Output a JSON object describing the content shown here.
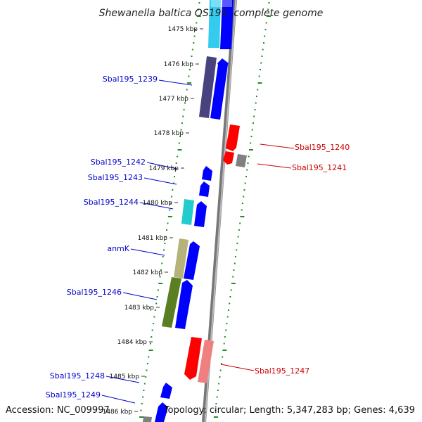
{
  "title": "Shewanella baltica OS195, complete genome",
  "accession_text": "Accession: NC_009997",
  "topology_text": "Topology: circular; Length: 5,347,283 bp; Genes: 4,639",
  "colors": {
    "forward_label": "#0000cc",
    "reverse_label": "#cc0000",
    "backbone": "#8c8c8c",
    "gc_ticks": "#228b22"
  },
  "kbp_labels": [
    {
      "text": "1475 kbp"
    },
    {
      "text": "1476 kbp"
    },
    {
      "text": "1477 kbp"
    },
    {
      "text": "1478 kbp"
    },
    {
      "text": "1479 kbp"
    },
    {
      "text": "1480 kbp"
    },
    {
      "text": "1481 kbp"
    },
    {
      "text": "1482 kbp"
    },
    {
      "text": "1483 kbp"
    },
    {
      "text": "1484 kbp"
    },
    {
      "text": "1485 kbp"
    },
    {
      "text": "1486 kbp"
    }
  ],
  "gene_labels": [
    {
      "text": "Sbal195_1239",
      "strand": "forward"
    },
    {
      "text": "Sbal195_1240",
      "strand": "reverse"
    },
    {
      "text": "Sbal195_1241",
      "strand": "reverse"
    },
    {
      "text": "Sbal195_1242",
      "strand": "forward"
    },
    {
      "text": "Sbal195_1243",
      "strand": "forward"
    },
    {
      "text": "Sbal195_1244",
      "strand": "forward"
    },
    {
      "text": "anmK",
      "strand": "forward"
    },
    {
      "text": "Sbal195_1246",
      "strand": "forward"
    },
    {
      "text": "Sbal195_1247",
      "strand": "reverse"
    },
    {
      "text": "Sbal195_1248",
      "strand": "forward"
    },
    {
      "text": "Sbal195_1249",
      "strand": "forward"
    }
  ]
}
